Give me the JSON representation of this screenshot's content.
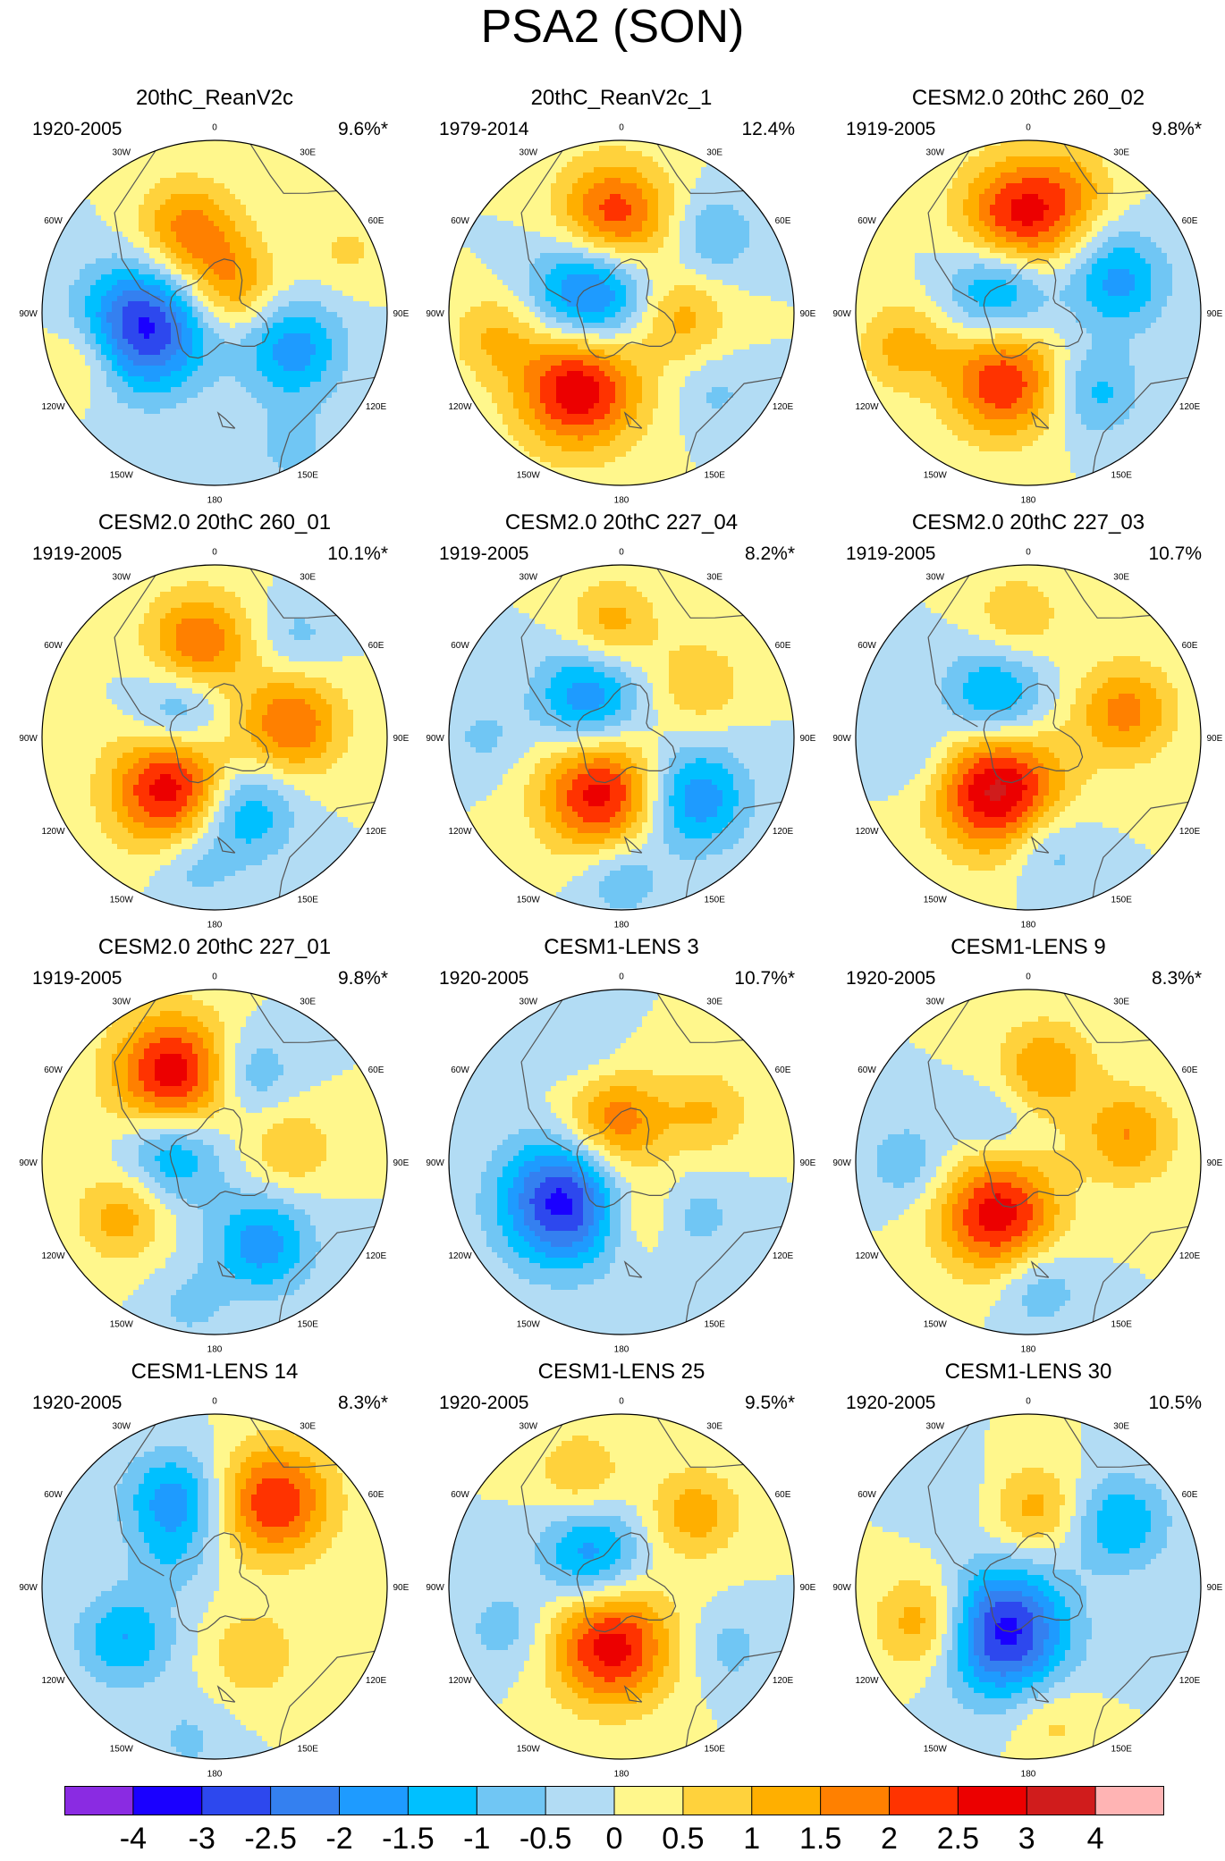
{
  "figure_title": "PSA2 (SON)",
  "lon_labels": [
    "0",
    "30E",
    "60E",
    "90E",
    "120E",
    "150E",
    "180",
    "150W",
    "120W",
    "90W",
    "60W",
    "30W"
  ],
  "colorbar": {
    "labels": [
      "-4",
      "-3",
      "-2.5",
      "-2",
      "-1.5",
      "-1",
      "-0.5",
      "0",
      "0.5",
      "1",
      "1.5",
      "2",
      "2.5",
      "3",
      "4"
    ],
    "colors": [
      "#8a2be2",
      "#1a00ff",
      "#2d48ee",
      "#3480f0",
      "#1e9bff",
      "#00c0ff",
      "#70c6f4",
      "#b2dcf4",
      "#fff78c",
      "#ffd23c",
      "#ffaf00",
      "#ff8000",
      "#ff3300",
      "#ec0000",
      "#d01c1c",
      "#ffb4b4"
    ]
  },
  "chart_data": [
    {
      "type": "heatmap",
      "title": "20thC_ReanV2c",
      "period": "1920-2005",
      "variance": "9.6%*",
      "blobs": [
        {
          "lon": -102,
          "r": 0.42,
          "amp": -3.2
        },
        {
          "lon": -18,
          "r": 0.5,
          "amp": 1.8
        },
        {
          "lon": 30,
          "r": 0.18,
          "amp": 1.5
        },
        {
          "lon": 115,
          "r": 0.5,
          "amp": -1.8
        },
        {
          "lon": -110,
          "r": 0.8,
          "amp": 1.0
        },
        {
          "lon": 65,
          "r": 0.85,
          "amp": 0.6
        },
        {
          "lon": 150,
          "r": 0.9,
          "amp": -0.7
        }
      ]
    },
    {
      "type": "heatmap",
      "title": "20thC_ReanV2c_1",
      "period": "1979-2014",
      "variance": "12.4%",
      "blobs": [
        {
          "lon": -55,
          "r": 0.22,
          "amp": -2.6
        },
        {
          "lon": -5,
          "r": 0.55,
          "amp": 2.5
        },
        {
          "lon": -150,
          "r": 0.5,
          "amp": 3.0
        },
        {
          "lon": 50,
          "r": 0.7,
          "amp": -1.0
        },
        {
          "lon": 95,
          "r": 0.35,
          "amp": 1.2
        },
        {
          "lon": -100,
          "r": 0.75,
          "amp": 1.0
        },
        {
          "lon": 130,
          "r": 0.72,
          "amp": -0.6
        }
      ]
    },
    {
      "type": "heatmap",
      "title": "CESM2.0 20thC 260_02",
      "period": "1919-2005",
      "variance": "9.8%*",
      "blobs": [
        {
          "lon": -50,
          "r": 0.22,
          "amp": -2.0
        },
        {
          "lon": -5,
          "r": 0.55,
          "amp": 2.8
        },
        {
          "lon": -160,
          "r": 0.42,
          "amp": 2.5
        },
        {
          "lon": 70,
          "r": 0.55,
          "amp": -1.7
        },
        {
          "lon": 140,
          "r": 0.6,
          "amp": -1.2
        },
        {
          "lon": -105,
          "r": 0.75,
          "amp": 1.2
        },
        {
          "lon": 20,
          "r": 0.78,
          "amp": 0.8
        }
      ]
    },
    {
      "type": "heatmap",
      "title": "CESM2.0 20thC 260_01",
      "period": "1919-2005",
      "variance": "10.1%*",
      "blobs": [
        {
          "lon": -10,
          "r": 0.55,
          "amp": 2.0
        },
        {
          "lon": -55,
          "r": 0.25,
          "amp": -1.5
        },
        {
          "lon": -140,
          "r": 0.38,
          "amp": 3.0
        },
        {
          "lon": 80,
          "r": 0.45,
          "amp": 2.0
        },
        {
          "lon": 160,
          "r": 0.45,
          "amp": -1.8
        },
        {
          "lon": -170,
          "r": 0.75,
          "amp": -0.8
        },
        {
          "lon": 40,
          "r": 0.75,
          "amp": -0.7
        }
      ]
    },
    {
      "type": "heatmap",
      "title": "CESM2.0 20thC 227_04",
      "period": "1919-2005",
      "variance": "8.2%*",
      "blobs": [
        {
          "lon": -40,
          "r": 0.3,
          "amp": -2.0
        },
        {
          "lon": -5,
          "r": 0.65,
          "amp": 1.3
        },
        {
          "lon": -160,
          "r": 0.35,
          "amp": 2.8
        },
        {
          "lon": 130,
          "r": 0.55,
          "amp": -2.0
        },
        {
          "lon": 55,
          "r": 0.55,
          "amp": 1.0
        },
        {
          "lon": 180,
          "r": 0.8,
          "amp": -1.0
        },
        {
          "lon": -90,
          "r": 0.8,
          "amp": -0.6
        }
      ]
    },
    {
      "type": "heatmap",
      "title": "CESM2.0 20thC 227_03",
      "period": "1919-2005",
      "variance": "10.7%",
      "blobs": [
        {
          "lon": -40,
          "r": 0.3,
          "amp": -1.8
        },
        {
          "lon": -150,
          "r": 0.35,
          "amp": 3.2
        },
        {
          "lon": 75,
          "r": 0.58,
          "amp": 1.7
        },
        {
          "lon": 170,
          "r": 0.65,
          "amp": -1.0
        },
        {
          "lon": -5,
          "r": 0.7,
          "amp": 1.0
        },
        {
          "lon": -100,
          "r": 0.65,
          "amp": -0.7
        }
      ]
    },
    {
      "type": "heatmap",
      "title": "CESM2.0 20thC 227_01",
      "period": "1919-2005",
      "variance": "9.8%*",
      "blobs": [
        {
          "lon": -25,
          "r": 0.55,
          "amp": 3.0
        },
        {
          "lon": -75,
          "r": 0.25,
          "amp": -1.8
        },
        {
          "lon": 150,
          "r": 0.55,
          "amp": -1.8
        },
        {
          "lon": 80,
          "r": 0.45,
          "amp": 1.0
        },
        {
          "lon": -120,
          "r": 0.62,
          "amp": 1.3
        },
        {
          "lon": 20,
          "r": 0.55,
          "amp": -1.2
        },
        {
          "lon": -170,
          "r": 0.85,
          "amp": -0.6
        }
      ]
    },
    {
      "type": "heatmap",
      "title": "CESM1-LENS 3",
      "period": "1920-2005",
      "variance": "10.7%*",
      "blobs": [
        {
          "lon": -125,
          "r": 0.4,
          "amp": -3.3
        },
        {
          "lon": -10,
          "r": 0.22,
          "amp": 2.0
        },
        {
          "lon": 170,
          "r": 0.3,
          "amp": 1.0
        },
        {
          "lon": 60,
          "r": 0.58,
          "amp": 1.0
        },
        {
          "lon": -20,
          "r": 0.7,
          "amp": -0.6
        },
        {
          "lon": 125,
          "r": 0.55,
          "amp": -0.7
        }
      ]
    },
    {
      "type": "heatmap",
      "title": "CESM1-LENS 9",
      "period": "1920-2005",
      "variance": "8.3%*",
      "blobs": [
        {
          "lon": -150,
          "r": 0.35,
          "amp": 2.8
        },
        {
          "lon": 10,
          "r": 0.55,
          "amp": 1.5
        },
        {
          "lon": 75,
          "r": 0.6,
          "amp": 1.5
        },
        {
          "lon": -90,
          "r": 0.7,
          "amp": -0.9
        },
        {
          "lon": 175,
          "r": 0.72,
          "amp": -1.0
        },
        {
          "lon": -40,
          "r": 0.3,
          "amp": -0.7
        }
      ]
    },
    {
      "type": "heatmap",
      "title": "CESM1-LENS 14",
      "period": "1920-2005",
      "variance": "8.3%*",
      "blobs": [
        {
          "lon": -25,
          "r": 0.55,
          "amp": -1.8
        },
        {
          "lon": 35,
          "r": 0.6,
          "amp": 2.5
        },
        {
          "lon": -120,
          "r": 0.6,
          "amp": -1.5
        },
        {
          "lon": 150,
          "r": 0.45,
          "amp": 1.0
        },
        {
          "lon": -60,
          "r": 0.3,
          "amp": -0.6
        },
        {
          "lon": -170,
          "r": 0.9,
          "amp": -0.6
        }
      ]
    },
    {
      "type": "heatmap",
      "title": "CESM1-LENS 25",
      "period": "1920-2005",
      "variance": "9.5%*",
      "blobs": [
        {
          "lon": -45,
          "r": 0.25,
          "amp": -1.8
        },
        {
          "lon": -170,
          "r": 0.35,
          "amp": 2.8
        },
        {
          "lon": 45,
          "r": 0.6,
          "amp": 1.3
        },
        {
          "lon": -20,
          "r": 0.7,
          "amp": 1.0
        },
        {
          "lon": -110,
          "r": 0.72,
          "amp": -0.8
        },
        {
          "lon": 120,
          "r": 0.72,
          "amp": -0.7
        }
      ]
    },
    {
      "type": "heatmap",
      "title": "CESM1-LENS 30",
      "period": "1920-2005",
      "variance": "10.5%",
      "blobs": [
        {
          "lon": -150,
          "r": 0.3,
          "amp": -3.3
        },
        {
          "lon": -110,
          "r": 0.62,
          "amp": 1.7
        },
        {
          "lon": 55,
          "r": 0.65,
          "amp": -1.5
        },
        {
          "lon": 5,
          "r": 0.45,
          "amp": 1.2
        },
        {
          "lon": 170,
          "r": 0.8,
          "amp": 0.7
        },
        {
          "lon": -40,
          "r": 0.75,
          "amp": -0.5
        }
      ]
    }
  ]
}
